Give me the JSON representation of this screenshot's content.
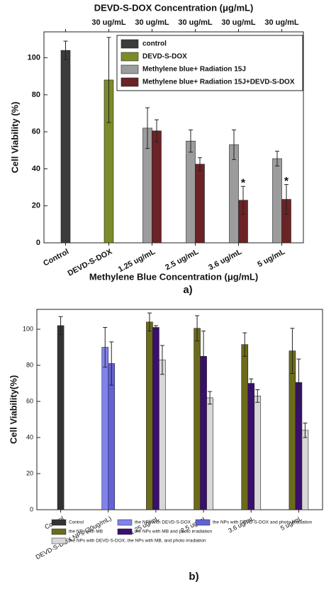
{
  "chart_data": [
    {
      "type": "bar",
      "top_axis_label": "DEVD-S-DOX Concentration (μg/mL)",
      "top_categories": [
        null,
        "30 ug/mL",
        "30 ug/mL",
        "30 ug/mL",
        "30 ug/mL",
        "30 ug/mL"
      ],
      "x_label": "Methylene Blue Concentration (μg/mL)",
      "y_label": "Cell Viability (%)",
      "panel_label": "a)",
      "categories": [
        "Control",
        "DEVD-S-DOX",
        "1.25 ug/mL",
        "2.5 ug/mL",
        "3.6 ug/mL",
        "5 ug/mL"
      ],
      "ylim": [
        0,
        114
      ],
      "yticks": [
        0,
        20,
        40,
        60,
        80,
        100
      ],
      "legend": "upper right",
      "series": [
        {
          "name": "control",
          "color": "#3b3b3b",
          "values": [
            104,
            null,
            null,
            null,
            null,
            null
          ],
          "errors": [
            5,
            null,
            null,
            null,
            null,
            null
          ]
        },
        {
          "name": "DEVD-S-DOX",
          "color": "#7d8a2a",
          "values": [
            null,
            88,
            null,
            null,
            null,
            null
          ],
          "errors": [
            null,
            23,
            null,
            null,
            null,
            null
          ]
        },
        {
          "name": "Methylene blue+ Radiation 15J",
          "color": "#9c9c9c",
          "values": [
            null,
            null,
            62,
            55,
            53,
            45.5
          ],
          "errors": [
            null,
            null,
            11,
            6,
            8,
            4
          ]
        },
        {
          "name": "Methylene blue+ Radiation 15J+DEVD-S-DOX",
          "color": "#6b2326",
          "values": [
            null,
            null,
            60.5,
            42.5,
            23,
            23.5
          ],
          "errors": [
            null,
            null,
            6,
            3.5,
            7.5,
            8
          ]
        }
      ],
      "annotations": [
        {
          "text": "*",
          "x": "3.6 ug/mL"
        },
        {
          "text": "*",
          "x": "5 ug/mL"
        }
      ]
    },
    {
      "type": "bar",
      "y_label": "Cell Viability(%)",
      "panel_label": "b)",
      "categories": [
        "Control",
        "DEVD-S-DOX NPs (30ug/mL)",
        "1.25 ug/mL",
        "2.5 ug/mL",
        "3.6 ug/mL",
        "5 ug/mL"
      ],
      "ylim": [
        0,
        111
      ],
      "yticks": [
        0,
        20,
        40,
        60,
        80,
        100
      ],
      "legend": "bottom",
      "series": [
        {
          "name": "Control",
          "color": "#333333",
          "values": [
            102,
            null,
            null,
            null,
            null,
            null
          ],
          "errors": [
            5,
            null,
            null,
            null,
            null,
            null
          ]
        },
        {
          "name": "the NPs with DEVD-S-DOX",
          "color": "#8282ee",
          "values": [
            null,
            90,
            null,
            null,
            null,
            null
          ],
          "errors": [
            null,
            11,
            null,
            null,
            null,
            null
          ]
        },
        {
          "name": "the NPs with DEVD-S-DOX  and photo irradiation",
          "color": "#6262d6",
          "values": [
            null,
            81,
            null,
            null,
            null,
            null
          ],
          "errors": [
            null,
            12,
            null,
            null,
            null,
            null
          ]
        },
        {
          "name": "the NPs with MB",
          "color": "#6b6b1a",
          "values": [
            null,
            null,
            104,
            100.5,
            91.5,
            88
          ],
          "errors": [
            null,
            null,
            5,
            7,
            6.5,
            12.5
          ]
        },
        {
          "name": "the NPs with MB and photo irradiation",
          "color": "#3a0f6e",
          "values": [
            null,
            null,
            101,
            85,
            70,
            70.5
          ],
          "errors": [
            null,
            null,
            1,
            14,
            2.5,
            13
          ]
        },
        {
          "name": "the NPs with DEVD-S-DOX, the NPs with MB, and photo irradiation",
          "color": "#d8d8d8",
          "values": [
            null,
            null,
            83,
            62,
            63,
            44
          ],
          "errors": [
            null,
            null,
            8,
            3.5,
            3.5,
            4
          ]
        }
      ]
    }
  ]
}
